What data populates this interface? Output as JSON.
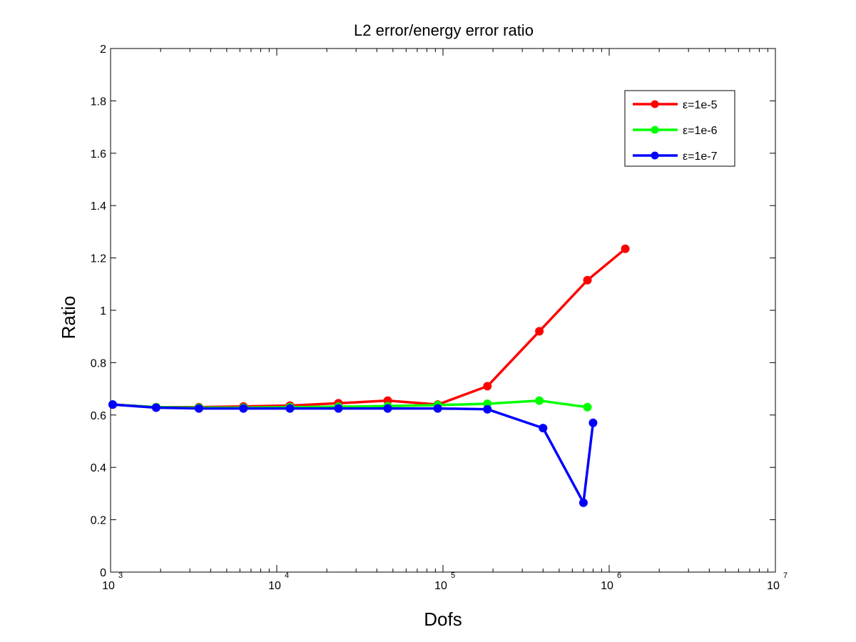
{
  "chart_data": {
    "type": "line",
    "title": "L2 error/energy error ratio",
    "xlabel": "Dofs",
    "ylabel": "Ratio",
    "x_scale": "log",
    "xlim": [
      1000,
      10000000
    ],
    "ylim": [
      0,
      2
    ],
    "x_ticks": [
      {
        "base": "10",
        "exp": "3",
        "value": 1000
      },
      {
        "base": "10",
        "exp": "4",
        "value": 10000
      },
      {
        "base": "10",
        "exp": "5",
        "value": 100000
      },
      {
        "base": "10",
        "exp": "6",
        "value": 1000000
      },
      {
        "base": "10",
        "exp": "7",
        "value": 10000000
      }
    ],
    "y_ticks": [
      "0",
      "0.2",
      "0.4",
      "0.6",
      "0.8",
      "1",
      "1.2",
      "1.4",
      "1.6",
      "1.8",
      "2"
    ],
    "grid": false,
    "legend_position": "top-right",
    "series": [
      {
        "name": "ε=1e-5",
        "color": "#ff0000",
        "x": [
          1030,
          1880,
          3400,
          6300,
          12000,
          23500,
          46500,
          93000,
          185000,
          380000,
          740000,
          1250000
        ],
        "y": [
          0.64,
          0.63,
          0.63,
          0.633,
          0.636,
          0.645,
          0.655,
          0.64,
          0.71,
          0.92,
          1.115,
          1.235
        ]
      },
      {
        "name": "ε=1e-6",
        "color": "#00ff00",
        "x": [
          1030,
          1880,
          3400,
          6300,
          12000,
          23500,
          46500,
          93000,
          185000,
          380000,
          740000
        ],
        "y": [
          0.64,
          0.63,
          0.628,
          0.628,
          0.63,
          0.632,
          0.634,
          0.638,
          0.643,
          0.655,
          0.63
        ]
      },
      {
        "name": "ε=1e-7",
        "color": "#0000ff",
        "x": [
          1030,
          1880,
          3400,
          6300,
          12000,
          23500,
          46500,
          93000,
          185000,
          400000,
          700000,
          800000
        ],
        "y": [
          0.64,
          0.628,
          0.625,
          0.625,
          0.625,
          0.625,
          0.625,
          0.625,
          0.622,
          0.55,
          0.265,
          0.57
        ]
      }
    ]
  }
}
